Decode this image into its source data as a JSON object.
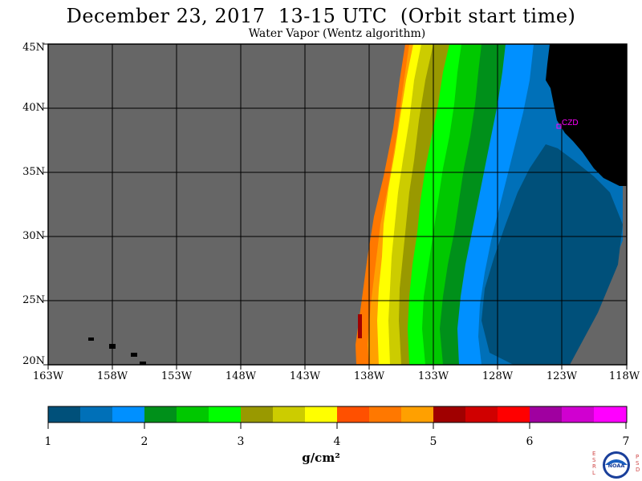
{
  "title": "December 23, 2017  13-15 UTC  (Orbit start time)",
  "subtitle": "Water Vapor (Wentz algorithm)",
  "map": {
    "lat_labels": [
      "45N",
      "40N",
      "35N",
      "30N",
      "25N",
      "20N"
    ],
    "lon_labels": [
      "163W",
      "158W",
      "153W",
      "148W",
      "143W",
      "138W",
      "133W",
      "128W",
      "123W",
      "118W"
    ],
    "extent": {
      "lon": [
        -163,
        -118
      ],
      "lat": [
        20,
        45
      ]
    },
    "no_data_color": "#666666",
    "land_color": "#000000",
    "station_label": "CZD",
    "station_color": "#ff00ff"
  },
  "colorbar": {
    "ticks": [
      "1",
      "2",
      "3",
      "4",
      "5",
      "6",
      "7"
    ],
    "units": "g/cm²",
    "colors": [
      "#00507a",
      "#0070b8",
      "#0090ff",
      "#00901a",
      "#00c800",
      "#00ff00",
      "#999900",
      "#cccc00",
      "#ffff00",
      "#ff5000",
      "#ff7800",
      "#ffa000",
      "#a00000",
      "#d00000",
      "#ff0000",
      "#a000a0",
      "#d000d0",
      "#ff00ff"
    ]
  },
  "logo": {
    "left_letters": [
      "E",
      "S",
      "R",
      "L"
    ],
    "right_letters": [
      "P",
      "S",
      "D"
    ],
    "text": "NOAA"
  }
}
